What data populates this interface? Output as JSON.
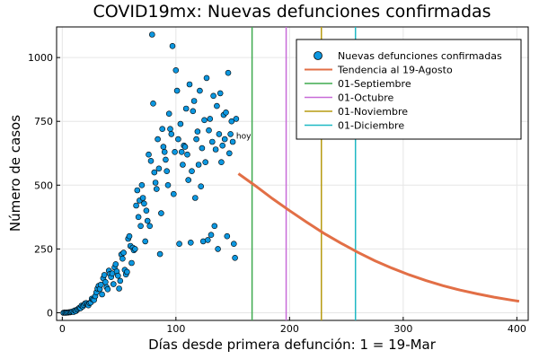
{
  "chart_data": {
    "type": "scatter",
    "title": "COVID19mx: Nuevas defunciones confirmadas",
    "xlabel": "Días desde primera defunción: 1 = 19-Mar",
    "ylabel": "Número de casos",
    "xlim": [
      -5,
      410
    ],
    "ylim": [
      -30,
      1120
    ],
    "x_ticks": [
      0,
      100,
      200,
      300,
      400
    ],
    "y_ticks": [
      0,
      250,
      500,
      750,
      1000
    ],
    "grid": true,
    "legend_position": "top-right",
    "annotations": [
      {
        "text": "hoy",
        "x": 153,
        "y": 682
      }
    ],
    "colors": {
      "scatter": "#0c97e0",
      "trend": "#e26f46",
      "sep": "#3eaa4f",
      "oct": "#c86bd8",
      "nov": "#b79c10",
      "dec": "#1eb9c4"
    },
    "series": [
      {
        "name": "Nuevas defunciones confirmadas",
        "type": "scatter",
        "points": [
          [
            1,
            0
          ],
          [
            2,
            1
          ],
          [
            3,
            0
          ],
          [
            4,
            1
          ],
          [
            5,
            1
          ],
          [
            6,
            2
          ],
          [
            7,
            2
          ],
          [
            8,
            3
          ],
          [
            9,
            5
          ],
          [
            10,
            3
          ],
          [
            11,
            9
          ],
          [
            12,
            7
          ],
          [
            13,
            12
          ],
          [
            14,
            15
          ],
          [
            15,
            19
          ],
          [
            16,
            18
          ],
          [
            17,
            28
          ],
          [
            18,
            25
          ],
          [
            19,
            30
          ],
          [
            20,
            36
          ],
          [
            21,
            38
          ],
          [
            22,
            33
          ],
          [
            23,
            29
          ],
          [
            24,
            38
          ],
          [
            25,
            40
          ],
          [
            26,
            55
          ],
          [
            27,
            52
          ],
          [
            28,
            50
          ],
          [
            29,
            65
          ],
          [
            30,
            80
          ],
          [
            31,
            95
          ],
          [
            32,
            105
          ],
          [
            33,
            93
          ],
          [
            34,
            110
          ],
          [
            35,
            72
          ],
          [
            36,
            135
          ],
          [
            37,
            148
          ],
          [
            38,
            120
          ],
          [
            39,
            100
          ],
          [
            40,
            92
          ],
          [
            41,
            165
          ],
          [
            42,
            152
          ],
          [
            43,
            140
          ],
          [
            44,
            154
          ],
          [
            45,
            112
          ],
          [
            46,
            178
          ],
          [
            47,
            190
          ],
          [
            48,
            162
          ],
          [
            49,
            145
          ],
          [
            50,
            95
          ],
          [
            51,
            125
          ],
          [
            52,
            228
          ],
          [
            53,
            212
          ],
          [
            54,
            235
          ],
          [
            55,
            168
          ],
          [
            56,
            150
          ],
          [
            57,
            160
          ],
          [
            58,
            290
          ],
          [
            59,
            300
          ],
          [
            60,
            262
          ],
          [
            61,
            195
          ],
          [
            62,
            255
          ],
          [
            63,
            245
          ],
          [
            64,
            250
          ],
          [
            65,
            420
          ],
          [
            66,
            480
          ],
          [
            67,
            375
          ],
          [
            68,
            440
          ],
          [
            69,
            340
          ],
          [
            70,
            500
          ],
          [
            71,
            450
          ],
          [
            72,
            428
          ],
          [
            73,
            280
          ],
          [
            74,
            400
          ],
          [
            75,
            360
          ],
          [
            76,
            620
          ],
          [
            77,
            340
          ],
          [
            78,
            595
          ],
          [
            79,
            1090
          ],
          [
            80,
            820
          ],
          [
            81,
            550
          ],
          [
            82,
            510
          ],
          [
            83,
            485
          ],
          [
            84,
            680
          ],
          [
            85,
            565
          ],
          [
            86,
            230
          ],
          [
            87,
            390
          ],
          [
            88,
            720
          ],
          [
            89,
            650
          ],
          [
            90,
            630
          ],
          [
            91,
            600
          ],
          [
            92,
            555
          ],
          [
            93,
            500
          ],
          [
            94,
            780
          ],
          [
            95,
            720
          ],
          [
            96,
            700
          ],
          [
            97,
            1045
          ],
          [
            98,
            465
          ],
          [
            99,
            630
          ],
          [
            100,
            950
          ],
          [
            101,
            870
          ],
          [
            102,
            680
          ],
          [
            103,
            270
          ],
          [
            104,
            740
          ],
          [
            105,
            630
          ],
          [
            106,
            580
          ],
          [
            107,
            655
          ],
          [
            108,
            650
          ],
          [
            109,
            800
          ],
          [
            110,
            620
          ],
          [
            111,
            520
          ],
          [
            112,
            895
          ],
          [
            113,
            275
          ],
          [
            114,
            555
          ],
          [
            115,
            790
          ],
          [
            116,
            830
          ],
          [
            117,
            450
          ],
          [
            118,
            680
          ],
          [
            119,
            710
          ],
          [
            120,
            580
          ],
          [
            121,
            870
          ],
          [
            122,
            495
          ],
          [
            123,
            645
          ],
          [
            124,
            280
          ],
          [
            125,
            755
          ],
          [
            126,
            590
          ],
          [
            127,
            920
          ],
          [
            128,
            285
          ],
          [
            129,
            715
          ],
          [
            130,
            760
          ],
          [
            131,
            305
          ],
          [
            132,
            670
          ],
          [
            133,
            850
          ],
          [
            134,
            340
          ],
          [
            135,
            640
          ],
          [
            136,
            810
          ],
          [
            137,
            250
          ],
          [
            138,
            700
          ],
          [
            139,
            860
          ],
          [
            140,
            590
          ],
          [
            141,
            655
          ],
          [
            142,
            775
          ],
          [
            143,
            680
          ],
          [
            144,
            785
          ],
          [
            145,
            300
          ],
          [
            146,
            940
          ],
          [
            147,
            625
          ],
          [
            148,
            700
          ],
          [
            149,
            750
          ],
          [
            150,
            670
          ],
          [
            151,
            270
          ],
          [
            152,
            215
          ],
          [
            153,
            760
          ]
        ]
      },
      {
        "name": "Tendencia al 19-Agosto",
        "type": "line",
        "x": [
          155,
          170,
          185,
          200,
          215,
          230,
          245,
          260,
          275,
          290,
          305,
          320,
          335,
          350,
          365,
          380,
          395,
          402
        ],
        "y": [
          545,
          497,
          447,
          400,
          355,
          312,
          273,
          237,
          204,
          175,
          149,
          126,
          106,
          89,
          74,
          61,
          50,
          45
        ]
      },
      {
        "name": "01-Septiembre",
        "type": "vline",
        "x": 167
      },
      {
        "name": "01-Octubre",
        "type": "vline",
        "x": 197
      },
      {
        "name": "01-Noviembre",
        "type": "vline",
        "x": 228
      },
      {
        "name": "01-Diciembre",
        "type": "vline",
        "x": 258
      }
    ]
  }
}
